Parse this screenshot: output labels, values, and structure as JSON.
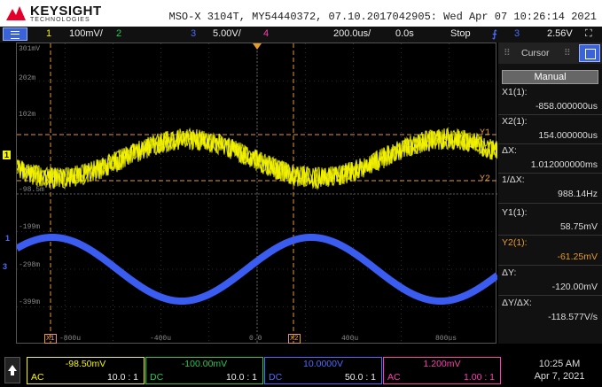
{
  "titlebar": {
    "brand": "KEYSIGHT",
    "brand_sub": "TECHNOLOGIES",
    "device_info": "MSO-X 3104T, MY54440372, 07.10.2017042905: Wed Apr 07 10:26:14 2021"
  },
  "toolbar": {
    "ch1_num": "1",
    "ch1_scale": "100mV/",
    "ch2_num": "2",
    "ch3_num": "3",
    "ch3_scale": "5.00V/",
    "ch4_num": "4",
    "timebase": "200.0us/",
    "delay": "0.0s",
    "run_state": "Stop",
    "trigger_source": "3",
    "trigger_level": "2.56V",
    "colors": {
      "ch1": "#f5f500",
      "ch2": "#22c955",
      "ch3": "#4b6bff",
      "ch4": "#ff3fb0",
      "trigger": "#4b6bff"
    }
  },
  "plot": {
    "y_labels": [
      "301mV",
      "202m",
      "102m",
      "-98.5m",
      "-199m",
      "-298m",
      "-399m"
    ],
    "x_labels": [
      "X1",
      "-800u",
      "-400u",
      "0.0",
      "X2",
      "400u",
      "800us"
    ],
    "ch1_marker": "1",
    "ch3_marker": "1",
    "y1_marker": "Y1",
    "y2_marker": "Y2",
    "trace_colors": {
      "ch1": "#f5f500",
      "ch3": "#3b5cf0",
      "cursor": "#e59a2b",
      "grid": "#555555"
    }
  },
  "cursor_panel": {
    "title": "Cursor",
    "mode": "Manual",
    "x1_label": "X1(1):",
    "x1_value": "-858.000000us",
    "x2_label": "X2(1):",
    "x2_value": "154.000000us",
    "dx_label": "ΔX:",
    "dx_value": "1.012000000ms",
    "inv_dx_label": "1/ΔX:",
    "inv_dx_value": "988.14Hz",
    "y1_label": "Y1(1):",
    "y1_value": "58.75mV",
    "y2_label": "Y2(1):",
    "y2_value": "-61.25mV",
    "dy_label": "ΔY:",
    "dy_value": "-120.00mV",
    "dydx_label": "ΔY/ΔX:",
    "dydx_value": "-118.577V/s"
  },
  "footer": {
    "channels": [
      {
        "value": "-98.50mV",
        "coupling": "AC",
        "ratio": "10.0 : 1",
        "color": "#f5f500"
      },
      {
        "value": "-100.00mV",
        "coupling": "DC",
        "ratio": "10.0 : 1",
        "color": "#22c955"
      },
      {
        "value": "10.0000V",
        "coupling": "DC",
        "ratio": "50.0 : 1",
        "color": "#4b6bff"
      },
      {
        "value": "1.200mV",
        "coupling": "AC",
        "ratio": "1.00 : 1",
        "color": "#ff3fb0"
      }
    ],
    "time": "10:25 AM",
    "date": "Apr 7, 2021"
  }
}
